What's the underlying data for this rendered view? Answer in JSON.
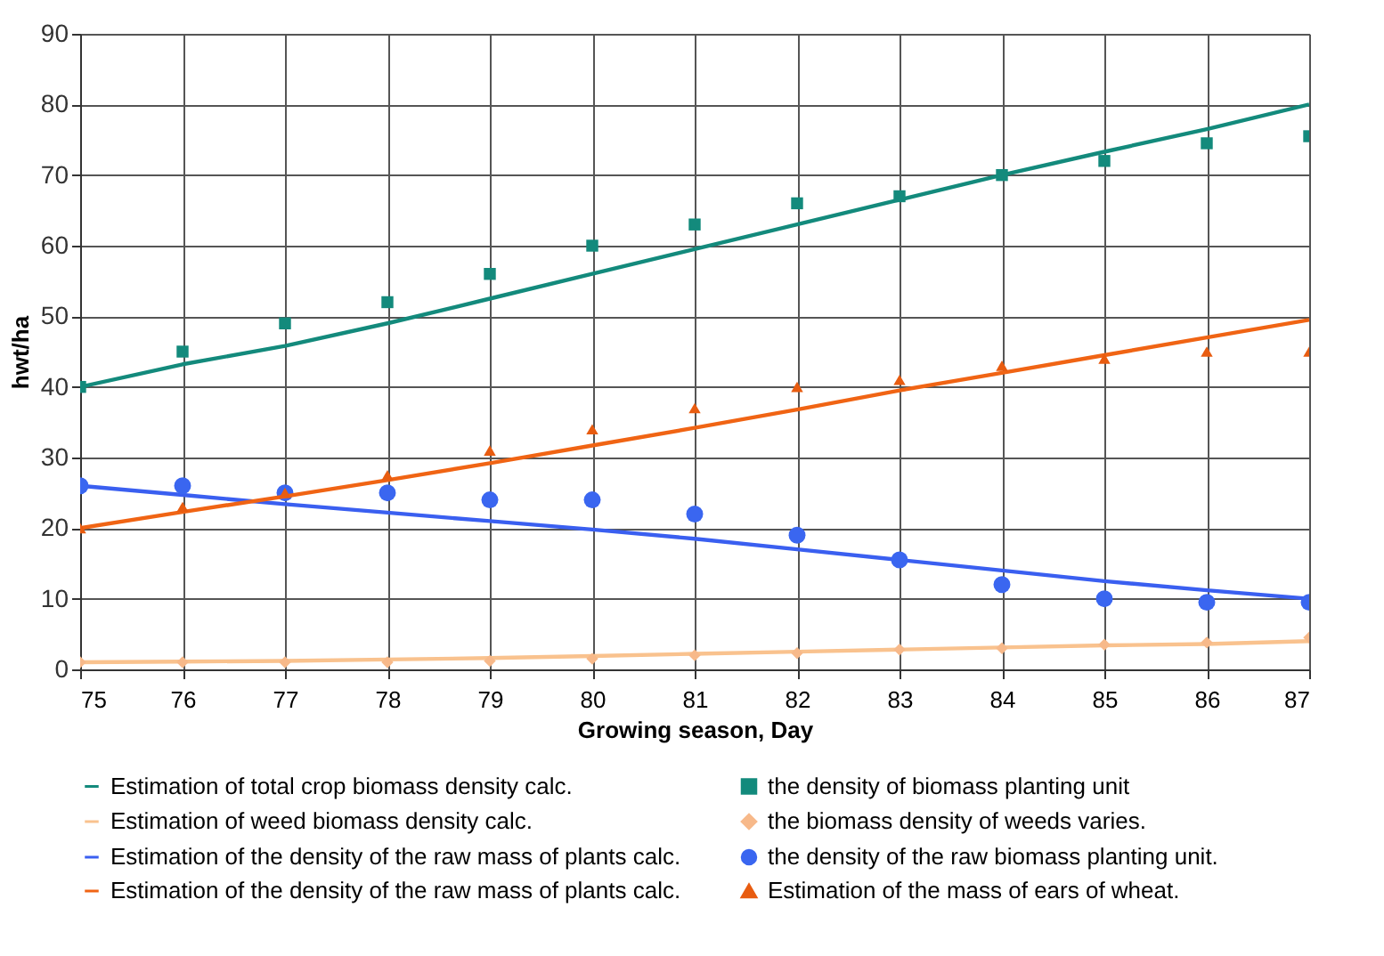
{
  "chart_data": {
    "type": "line",
    "xlabel": "Growing season, Day",
    "ylabel": "hwt/ha",
    "x": [
      75,
      76,
      77,
      78,
      79,
      80,
      81,
      82,
      83,
      84,
      85,
      86,
      87
    ],
    "marker": "none",
    "xlim": [
      75,
      87
    ],
    "xticks": [
      75,
      76,
      77,
      78,
      79,
      80,
      81,
      82,
      83,
      84,
      85,
      86,
      87
    ],
    "ylim": [
      0,
      90
    ],
    "yticks": [
      0,
      10,
      20,
      30,
      40,
      50,
      60,
      70,
      80,
      90
    ],
    "grid": true,
    "legend": "bottom",
    "line_style": "solid",
    "series": [
      {
        "name": "Estimation of total crop biomass density calc.",
        "color": "#138a7c",
        "values": [
          40,
          43.2,
          45.8,
          49,
          52.5,
          56,
          59.5,
          63,
          66.5,
          70,
          73.3,
          76.5,
          80
        ]
      },
      {
        "name": "the density of biomass planting unit",
        "type": "scatter",
        "marker": "square",
        "color": "#138a7c",
        "values": [
          40,
          45,
          49,
          52,
          56,
          60,
          63,
          66,
          67,
          70,
          72,
          74.5,
          75.5
        ]
      },
      {
        "name": "Estimation of weed biomass density calc.",
        "color": "#f9c28e",
        "values": [
          1,
          1.1,
          1.2,
          1.4,
          1.6,
          1.9,
          2.2,
          2.5,
          2.8,
          3.1,
          3.4,
          3.6,
          4
        ]
      },
      {
        "name": "the biomass density of weeds varies.",
        "type": "scatter",
        "marker": "diamond",
        "color": "#f7b98a",
        "values": [
          1,
          1,
          1,
          1,
          1.2,
          1.5,
          2,
          2.3,
          2.8,
          3,
          3.5,
          3.8,
          4.5
        ]
      },
      {
        "name": "Estimation of the density of the raw mass of plants calc.",
        "color": "#3a5ff0",
        "values": [
          26,
          24.7,
          23.4,
          22.2,
          21,
          19.8,
          18.5,
          17,
          15.5,
          14,
          12.5,
          11.2,
          10
        ]
      },
      {
        "name": "the density of the raw biomass planting unit.",
        "type": "scatter",
        "marker": "circle",
        "color": "#3a66f0",
        "values": [
          26,
          26,
          25,
          25,
          24,
          24,
          22,
          19,
          15.5,
          12,
          10,
          9.5,
          9.5
        ]
      },
      {
        "name": "Estimation of the density of the raw mass of plants calc.",
        "color": "#f06414",
        "values": [
          20,
          22.3,
          24.5,
          26.8,
          29.2,
          31.7,
          34.2,
          36.8,
          39.5,
          42,
          44.5,
          47,
          49.5
        ]
      },
      {
        "name": "Estimation of the mass of ears of wheat.",
        "type": "scatter",
        "marker": "triangle",
        "color": "#e85c10",
        "values": [
          20,
          23,
          25,
          27.5,
          31,
          34,
          37,
          40,
          41,
          43,
          44,
          45,
          45
        ]
      }
    ]
  }
}
